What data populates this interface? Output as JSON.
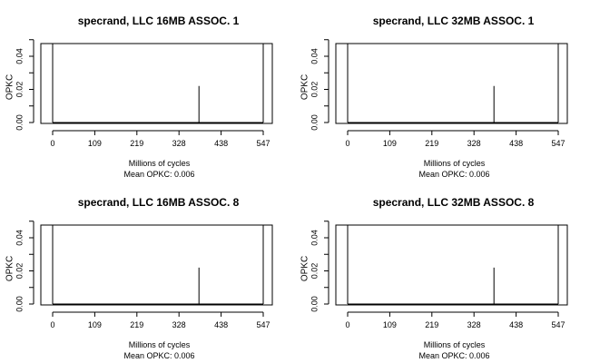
{
  "chart_data": [
    {
      "type": "line",
      "title": "specrand, LLC 16MB ASSOC. 1",
      "xlabel": "Millions of cycles",
      "ylabel": "OPKC",
      "subtitle": "Mean OPKC: 0.006",
      "xlim": [
        0,
        547
      ],
      "ylim": [
        0,
        0.05
      ],
      "x_ticks": [
        "0",
        "109",
        "219",
        "328",
        "438",
        "547"
      ],
      "y_ticks": [
        "0.00",
        "0.02",
        "0.04"
      ],
      "series": [
        {
          "x": [
            0,
            380,
            380,
            380,
            547
          ],
          "y": [
            0,
            0,
            0.022,
            0,
            0
          ]
        }
      ]
    },
    {
      "type": "line",
      "title": "specrand, LLC 32MB ASSOC. 1",
      "xlabel": "Millions of cycles",
      "ylabel": "OPKC",
      "subtitle": "Mean OPKC: 0.006",
      "xlim": [
        0,
        547
      ],
      "ylim": [
        0,
        0.05
      ],
      "x_ticks": [
        "0",
        "109",
        "219",
        "328",
        "438",
        "547"
      ],
      "y_ticks": [
        "0.00",
        "0.02",
        "0.04"
      ],
      "series": [
        {
          "x": [
            0,
            380,
            380,
            380,
            547
          ],
          "y": [
            0,
            0,
            0.022,
            0,
            0
          ]
        }
      ]
    },
    {
      "type": "line",
      "title": "specrand, LLC 16MB ASSOC. 8",
      "xlabel": "Millions of cycles",
      "ylabel": "OPKC",
      "subtitle": "Mean OPKC: 0.006",
      "xlim": [
        0,
        547
      ],
      "ylim": [
        0,
        0.05
      ],
      "x_ticks": [
        "0",
        "109",
        "219",
        "328",
        "438",
        "547"
      ],
      "y_ticks": [
        "0.00",
        "0.02",
        "0.04"
      ],
      "series": [
        {
          "x": [
            0,
            380,
            380,
            380,
            547
          ],
          "y": [
            0,
            0,
            0.022,
            0,
            0
          ]
        }
      ]
    },
    {
      "type": "line",
      "title": "specrand, LLC 32MB ASSOC. 8",
      "xlabel": "Millions of cycles",
      "ylabel": "OPKC",
      "subtitle": "Mean OPKC: 0.006",
      "xlim": [
        0,
        547
      ],
      "ylim": [
        0,
        0.05
      ],
      "x_ticks": [
        "0",
        "109",
        "219",
        "328",
        "438",
        "547"
      ],
      "y_ticks": [
        "0.00",
        "0.02",
        "0.04"
      ],
      "series": [
        {
          "x": [
            0,
            380,
            380,
            380,
            547
          ],
          "y": [
            0,
            0,
            0.022,
            0,
            0
          ]
        }
      ]
    }
  ]
}
